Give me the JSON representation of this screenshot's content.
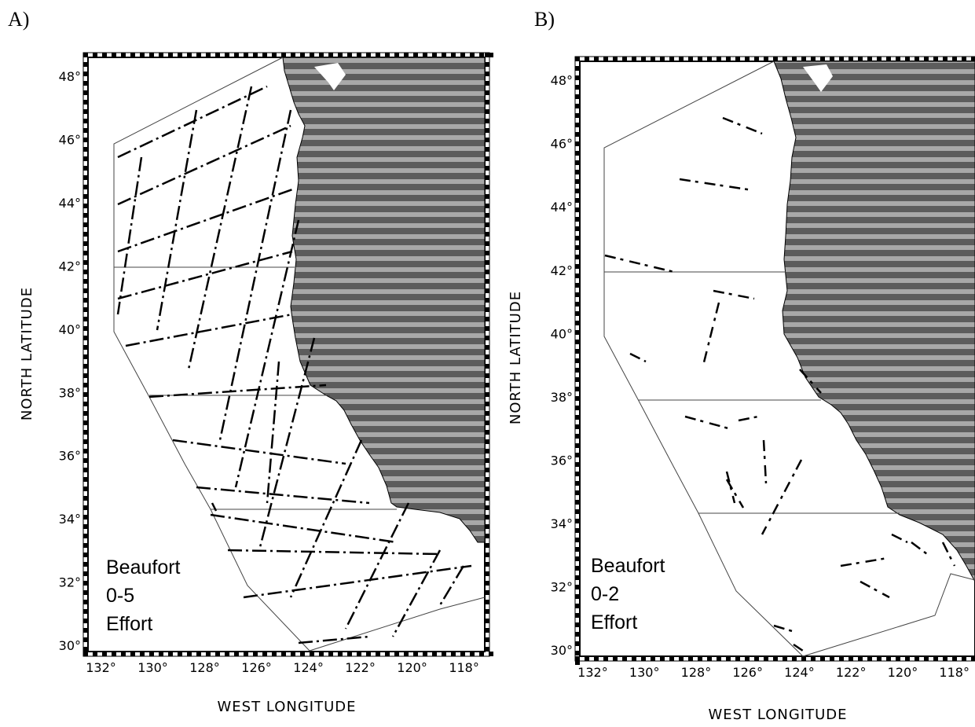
{
  "panels": [
    {
      "letter": "A)",
      "y_axis_label": "NORTH LATITUDE",
      "x_axis_label": "WEST LONGITUDE",
      "lat_ticks": [
        "48°",
        "46°",
        "44°",
        "42°",
        "40°",
        "38°",
        "36°",
        "34°",
        "32°",
        "30°"
      ],
      "lon_ticks": [
        "132°",
        "130°",
        "128°",
        "126°",
        "124°",
        "122°",
        "120°",
        "118°"
      ],
      "legend": [
        "Beaufort",
        "0-5",
        "Effort"
      ]
    },
    {
      "letter": "B)",
      "y_axis_label": "NORTH LATITUDE",
      "x_axis_label": "WEST LONGITUDE",
      "lat_ticks": [
        "48°",
        "46°",
        "44°",
        "42°",
        "40°",
        "38°",
        "36°",
        "34°",
        "32°",
        "30°"
      ],
      "lon_ticks": [
        "132°",
        "130°",
        "128°",
        "126°",
        "124°",
        "122°",
        "120°",
        "118°"
      ],
      "legend": [
        "Beaufort",
        "0-2",
        "Effort"
      ]
    }
  ],
  "colors": {
    "land": "#6e6e6e",
    "land_stripe": "#9a9a9a",
    "track": "#000000",
    "boundary": "#444444"
  }
}
